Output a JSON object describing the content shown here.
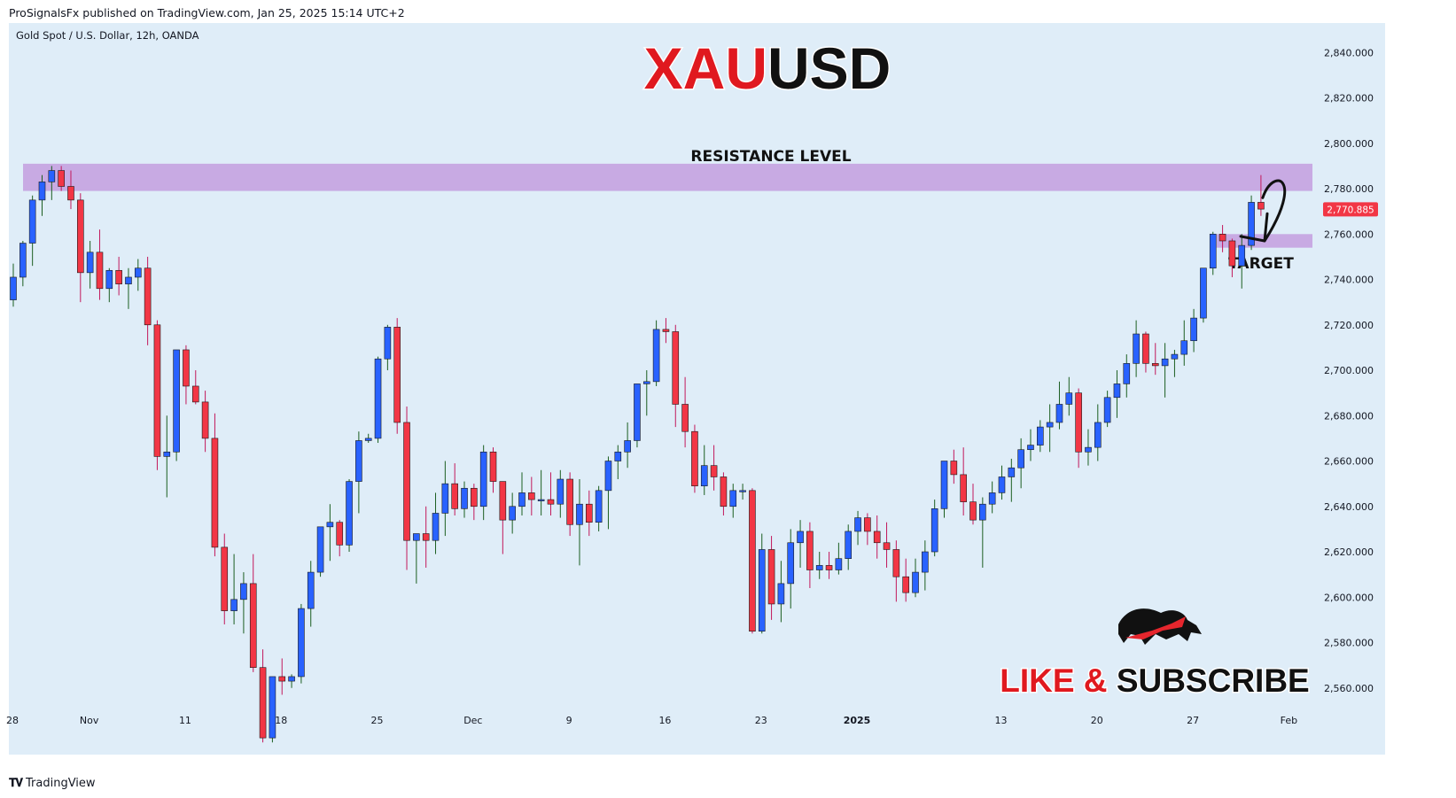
{
  "header": {
    "published": "ProSignalsFx published on TradingView.com, Jan 25, 2025 15:14 UTC+2"
  },
  "footer": {
    "brand": "TradingView",
    "icon": "tradingview-logo-icon"
  },
  "colors": {
    "background": "#dfedf8",
    "bull": "#2962ff",
    "bear": "#f23645",
    "zone": "#c6a6e2",
    "price_tag": "#f23645"
  },
  "chart_data": {
    "type": "candlestick",
    "symbol_info": "Gold Spot / U.S. Dollar, 12h, OANDA",
    "title_part1": "XAU",
    "title_part2": "USD",
    "ylim": [
      2540,
      2853
    ],
    "y_ticks": [
      2560,
      2580,
      2600,
      2620,
      2640,
      2660,
      2680,
      2700,
      2720,
      2740,
      2760,
      2780,
      2800,
      2820,
      2840
    ],
    "y_tick_labels": [
      "2,560.000",
      "2,580.000",
      "2,600.000",
      "2,620.000",
      "2,640.000",
      "2,660.000",
      "2,680.000",
      "2,700.000",
      "2,720.000",
      "2,740.000",
      "2,760.000",
      "2,780.000",
      "2,800.000",
      "2,820.000",
      "2,840.000"
    ],
    "x_labels": [
      {
        "label": "28",
        "bar": 0
      },
      {
        "label": "Nov",
        "bar": 8
      },
      {
        "label": "11",
        "bar": 18
      },
      {
        "label": "18",
        "bar": 28
      },
      {
        "label": "25",
        "bar": 38
      },
      {
        "label": "Dec",
        "bar": 48
      },
      {
        "label": "9",
        "bar": 58
      },
      {
        "label": "16",
        "bar": 68
      },
      {
        "label": "23",
        "bar": 78
      },
      {
        "label": "2025",
        "bar": 88,
        "bold": true
      },
      {
        "label": "13",
        "bar": 103
      },
      {
        "label": "20",
        "bar": 113
      },
      {
        "label": "27",
        "bar": 123
      },
      {
        "label": "Feb",
        "bar": 133
      }
    ],
    "last_price": 2770.885,
    "last_price_label": "2,770.885",
    "resistance_zone": {
      "low": 2779,
      "high": 2791,
      "label": "RESISTANCE LEVEL"
    },
    "target_zone": {
      "low": 2754,
      "high": 2760,
      "label": "TARGET",
      "from_bar": 125
    },
    "ohlc": [
      [
        2731,
        2747,
        2728,
        2741
      ],
      [
        2741,
        2757,
        2737,
        2756
      ],
      [
        2756,
        2777,
        2746,
        2775
      ],
      [
        2775,
        2786,
        2768,
        2783
      ],
      [
        2783,
        2790,
        2775,
        2788
      ],
      [
        2788,
        2790,
        2779,
        2781
      ],
      [
        2781,
        2788,
        2771,
        2775
      ],
      [
        2775,
        2778,
        2730,
        2743
      ],
      [
        2743,
        2757,
        2736,
        2752
      ],
      [
        2752,
        2762,
        2731,
        2736
      ],
      [
        2736,
        2745,
        2730,
        2744
      ],
      [
        2744,
        2750,
        2733,
        2738
      ],
      [
        2738,
        2745,
        2727,
        2741
      ],
      [
        2741,
        2749,
        2735,
        2745
      ],
      [
        2745,
        2750,
        2711,
        2720
      ],
      [
        2720,
        2722,
        2656,
        2662
      ],
      [
        2662,
        2680,
        2644,
        2664
      ],
      [
        2664,
        2709,
        2660,
        2709
      ],
      [
        2709,
        2711,
        2685,
        2693
      ],
      [
        2693,
        2700,
        2685,
        2686
      ],
      [
        2686,
        2691,
        2664,
        2670
      ],
      [
        2670,
        2681,
        2618,
        2622
      ],
      [
        2622,
        2628,
        2588,
        2594
      ],
      [
        2594,
        2619,
        2588,
        2599
      ],
      [
        2599,
        2611,
        2584,
        2606
      ],
      [
        2606,
        2619,
        2567,
        2569
      ],
      [
        2569,
        2577,
        2536,
        2538
      ],
      [
        2538,
        2565,
        2536,
        2565
      ],
      [
        2565,
        2573,
        2557,
        2563
      ],
      [
        2563,
        2566,
        2560,
        2565
      ],
      [
        2565,
        2597,
        2562,
        2595
      ],
      [
        2595,
        2616,
        2587,
        2611
      ],
      [
        2611,
        2630,
        2609,
        2631
      ],
      [
        2631,
        2641,
        2616,
        2633
      ],
      [
        2633,
        2634,
        2618,
        2623
      ],
      [
        2623,
        2652,
        2620,
        2651
      ],
      [
        2651,
        2673,
        2637,
        2669
      ],
      [
        2669,
        2672,
        2668,
        2670
      ],
      [
        2670,
        2706,
        2668,
        2705
      ],
      [
        2705,
        2720,
        2700,
        2719
      ],
      [
        2719,
        2723,
        2672,
        2677
      ],
      [
        2677,
        2684,
        2612,
        2625
      ],
      [
        2625,
        2628,
        2606,
        2628
      ],
      [
        2628,
        2640,
        2613,
        2625
      ],
      [
        2625,
        2646,
        2619,
        2637
      ],
      [
        2637,
        2660,
        2627,
        2650
      ],
      [
        2650,
        2659,
        2636,
        2639
      ],
      [
        2639,
        2651,
        2635,
        2648
      ],
      [
        2648,
        2650,
        2634,
        2640
      ],
      [
        2640,
        2667,
        2634,
        2664
      ],
      [
        2664,
        2666,
        2646,
        2651
      ],
      [
        2651,
        2651,
        2619,
        2634
      ],
      [
        2634,
        2646,
        2628,
        2640
      ],
      [
        2640,
        2655,
        2636,
        2646
      ],
      [
        2646,
        2653,
        2636,
        2643
      ],
      [
        2643,
        2656,
        2636,
        2643
      ],
      [
        2643,
        2655,
        2636,
        2641
      ],
      [
        2641,
        2656,
        2635,
        2652
      ],
      [
        2652,
        2655,
        2627,
        2632
      ],
      [
        2632,
        2652,
        2614,
        2641
      ],
      [
        2641,
        2647,
        2627,
        2633
      ],
      [
        2633,
        2649,
        2629,
        2647
      ],
      [
        2647,
        2662,
        2630,
        2660
      ],
      [
        2660,
        2667,
        2652,
        2664
      ],
      [
        2664,
        2677,
        2657,
        2669
      ],
      [
        2669,
        2694,
        2666,
        2694
      ],
      [
        2694,
        2700,
        2680,
        2695
      ],
      [
        2695,
        2722,
        2693,
        2718
      ],
      [
        2718,
        2723,
        2712,
        2717
      ],
      [
        2717,
        2720,
        2675,
        2685
      ],
      [
        2685,
        2697,
        2666,
        2673
      ],
      [
        2673,
        2676,
        2646,
        2649
      ],
      [
        2649,
        2667,
        2645,
        2658
      ],
      [
        2658,
        2667,
        2647,
        2653
      ],
      [
        2653,
        2655,
        2636,
        2640
      ],
      [
        2640,
        2650,
        2635,
        2647
      ],
      [
        2647,
        2650,
        2643,
        2647
      ],
      [
        2647,
        2648,
        2584,
        2585
      ],
      [
        2585,
        2628,
        2584,
        2621
      ],
      [
        2621,
        2627,
        2590,
        2597
      ],
      [
        2597,
        2616,
        2589,
        2606
      ],
      [
        2606,
        2630,
        2595,
        2624
      ],
      [
        2624,
        2634,
        2613,
        2629
      ],
      [
        2629,
        2633,
        2604,
        2612
      ],
      [
        2612,
        2620,
        2608,
        2614
      ],
      [
        2614,
        2620,
        2608,
        2612
      ],
      [
        2612,
        2624,
        2610,
        2617
      ],
      [
        2617,
        2632,
        2612,
        2629
      ],
      [
        2629,
        2638,
        2623,
        2635
      ],
      [
        2635,
        2637,
        2623,
        2629
      ],
      [
        2629,
        2636,
        2617,
        2624
      ],
      [
        2624,
        2633,
        2613,
        2621
      ],
      [
        2621,
        2625,
        2598,
        2609
      ],
      [
        2609,
        2617,
        2598,
        2602
      ],
      [
        2602,
        2617,
        2600,
        2611
      ],
      [
        2611,
        2625,
        2603,
        2620
      ],
      [
        2620,
        2643,
        2618,
        2639
      ],
      [
        2639,
        2659,
        2635,
        2660
      ],
      [
        2660,
        2665,
        2650,
        2654
      ],
      [
        2654,
        2666,
        2636,
        2642
      ],
      [
        2642,
        2650,
        2632,
        2634
      ],
      [
        2634,
        2644,
        2613,
        2641
      ],
      [
        2641,
        2651,
        2637,
        2646
      ],
      [
        2646,
        2658,
        2643,
        2653
      ],
      [
        2653,
        2661,
        2642,
        2657
      ],
      [
        2657,
        2670,
        2648,
        2665
      ],
      [
        2665,
        2674,
        2660,
        2667
      ],
      [
        2667,
        2678,
        2664,
        2675
      ],
      [
        2675,
        2685,
        2664,
        2677
      ],
      [
        2677,
        2695,
        2674,
        2685
      ],
      [
        2685,
        2697,
        2680,
        2690
      ],
      [
        2690,
        2692,
        2657,
        2664
      ],
      [
        2664,
        2674,
        2658,
        2666
      ],
      [
        2666,
        2685,
        2660,
        2677
      ],
      [
        2677,
        2691,
        2675,
        2688
      ],
      [
        2688,
        2700,
        2679,
        2694
      ],
      [
        2694,
        2707,
        2688,
        2703
      ],
      [
        2703,
        2722,
        2697,
        2716
      ],
      [
        2716,
        2717,
        2699,
        2703
      ],
      [
        2703,
        2712,
        2698,
        2702
      ],
      [
        2702,
        2712,
        2688,
        2705
      ],
      [
        2705,
        2709,
        2697,
        2707
      ],
      [
        2707,
        2722,
        2702,
        2713
      ],
      [
        2713,
        2727,
        2708,
        2723
      ],
      [
        2723,
        2745,
        2721,
        2745
      ],
      [
        2745,
        2761,
        2742,
        2760
      ],
      [
        2760,
        2764,
        2752,
        2757
      ],
      [
        2757,
        2758,
        2741,
        2746
      ],
      [
        2746,
        2760,
        2736,
        2755
      ],
      [
        2755,
        2777,
        2753,
        2774
      ],
      [
        2774,
        2786,
        2768,
        2771
      ]
    ]
  },
  "promo": {
    "like": "LIKE & ",
    "subscribe": "SUBSCRIBE",
    "icon": "bull-logo-icon"
  }
}
